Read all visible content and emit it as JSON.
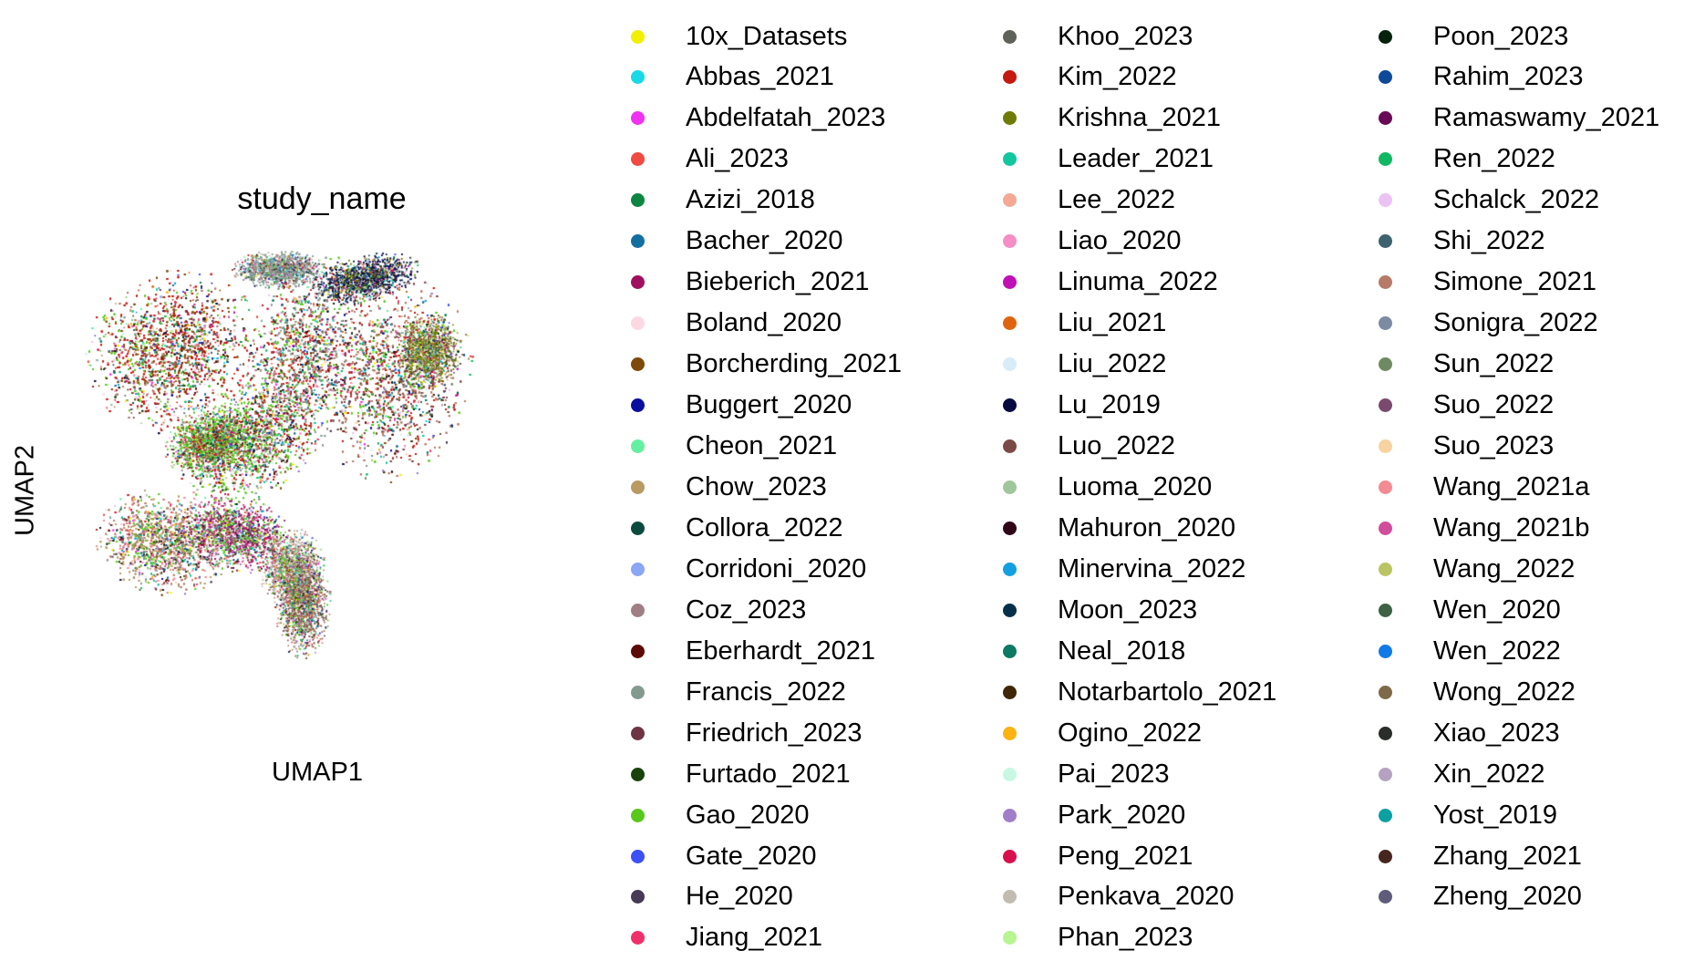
{
  "chart_data": {
    "type": "scatter",
    "title": "study_name",
    "xlabel": "UMAP1",
    "ylabel": "UMAP2",
    "grid": false,
    "legend_position": "right",
    "legend": [
      {
        "name": "10x_Datasets",
        "color": "#f0f000"
      },
      {
        "name": "Abbas_2021",
        "color": "#1ad9e6"
      },
      {
        "name": "Abdelfatah_2023",
        "color": "#f031f0"
      },
      {
        "name": "Ali_2023",
        "color": "#f04a43"
      },
      {
        "name": "Azizi_2018",
        "color": "#0c8640"
      },
      {
        "name": "Bacher_2020",
        "color": "#136fa0"
      },
      {
        "name": "Bieberich_2021",
        "color": "#a0105e"
      },
      {
        "name": "Boland_2020",
        "color": "#fcd9e2"
      },
      {
        "name": "Borcherding_2021",
        "color": "#7c4a0a"
      },
      {
        "name": "Buggert_2020",
        "color": "#0a0e9e"
      },
      {
        "name": "Cheon_2021",
        "color": "#64f0a0"
      },
      {
        "name": "Chow_2023",
        "color": "#b89a62"
      },
      {
        "name": "Collora_2022",
        "color": "#0c4a3e"
      },
      {
        "name": "Corridoni_2020",
        "color": "#8aa6f4"
      },
      {
        "name": "Coz_2023",
        "color": "#a07e86"
      },
      {
        "name": "Eberhardt_2021",
        "color": "#5a0a08"
      },
      {
        "name": "Francis_2022",
        "color": "#849a90"
      },
      {
        "name": "Friedrich_2023",
        "color": "#6e3444"
      },
      {
        "name": "Furtado_2021",
        "color": "#1a420c"
      },
      {
        "name": "Gao_2020",
        "color": "#58c81c"
      },
      {
        "name": "Gate_2020",
        "color": "#3c50f4"
      },
      {
        "name": "He_2020",
        "color": "#463a56"
      },
      {
        "name": "Jiang_2021",
        "color": "#f0306a"
      },
      {
        "name": "Khoo_2023",
        "color": "#5e6258"
      },
      {
        "name": "Kim_2022",
        "color": "#c41a10"
      },
      {
        "name": "Krishna_2021",
        "color": "#6e7c06"
      },
      {
        "name": "Leader_2021",
        "color": "#12c6a0"
      },
      {
        "name": "Lee_2022",
        "color": "#f4a896"
      },
      {
        "name": "Liao_2020",
        "color": "#f48ec4"
      },
      {
        "name": "Linuma_2022",
        "color": "#c010b6"
      },
      {
        "name": "Liu_2021",
        "color": "#e06410"
      },
      {
        "name": "Liu_2022",
        "color": "#d8ecf8"
      },
      {
        "name": "Lu_2019",
        "color": "#060a40"
      },
      {
        "name": "Luo_2022",
        "color": "#7c4a46"
      },
      {
        "name": "Luoma_2020",
        "color": "#a0c69c"
      },
      {
        "name": "Mahuron_2020",
        "color": "#2e0618"
      },
      {
        "name": "Minervina_2022",
        "color": "#12a0e0"
      },
      {
        "name": "Moon_2023",
        "color": "#06304a"
      },
      {
        "name": "Neal_2018",
        "color": "#0c7a62"
      },
      {
        "name": "Notarbartolo_2021",
        "color": "#3e2606"
      },
      {
        "name": "Ogino_2022",
        "color": "#fcb210"
      },
      {
        "name": "Pai_2023",
        "color": "#c8f8e4"
      },
      {
        "name": "Park_2020",
        "color": "#a27ec8"
      },
      {
        "name": "Peng_2021",
        "color": "#d8104e"
      },
      {
        "name": "Penkava_2020",
        "color": "#c2bcb0"
      },
      {
        "name": "Phan_2023",
        "color": "#b8f490"
      },
      {
        "name": "Poon_2023",
        "color": "#06220c"
      },
      {
        "name": "Rahim_2023",
        "color": "#0e4a9a"
      },
      {
        "name": "Ramaswamy_2021",
        "color": "#680a56"
      },
      {
        "name": "Ren_2022",
        "color": "#10b862"
      },
      {
        "name": "Schalck_2022",
        "color": "#ecc2f4"
      },
      {
        "name": "Shi_2022",
        "color": "#3e6270"
      },
      {
        "name": "Simone_2021",
        "color": "#b87a68"
      },
      {
        "name": "Sonigra_2022",
        "color": "#7c8aa2"
      },
      {
        "name": "Sun_2022",
        "color": "#6e8a62"
      },
      {
        "name": "Suo_2022",
        "color": "#7a4a6e"
      },
      {
        "name": "Suo_2023",
        "color": "#f8d2a0"
      },
      {
        "name": "Wang_2021a",
        "color": "#f48a92"
      },
      {
        "name": "Wang_2021b",
        "color": "#d04e9a"
      },
      {
        "name": "Wang_2022",
        "color": "#bac462"
      },
      {
        "name": "Wen_2020",
        "color": "#3e6244"
      },
      {
        "name": "Wen_2022",
        "color": "#107ae6"
      },
      {
        "name": "Wong_2022",
        "color": "#7e6a4a"
      },
      {
        "name": "Xiao_2023",
        "color": "#2a2e2a"
      },
      {
        "name": "Xin_2022",
        "color": "#b4a2c0"
      },
      {
        "name": "Yost_2019",
        "color": "#0ca0a2"
      },
      {
        "name": "Zhang_2021",
        "color": "#46261e"
      },
      {
        "name": "Zheng_2020",
        "color": "#5e5c7a"
      }
    ]
  }
}
